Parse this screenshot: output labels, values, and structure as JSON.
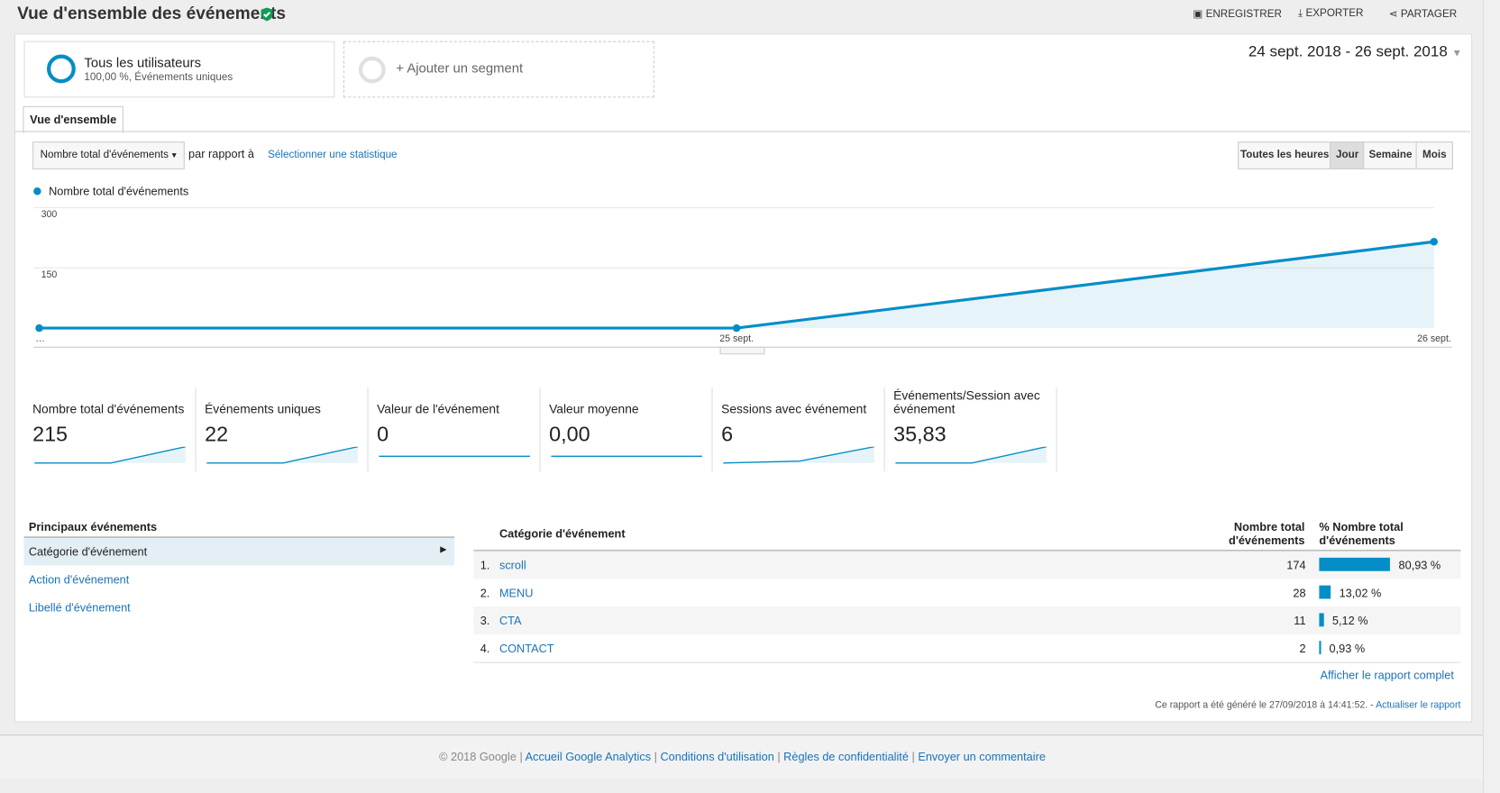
{
  "header": {
    "title": "Vue d'ensemble des événements",
    "actions": [
      "ENREGISTRER",
      "EXPORTER",
      "PARTAGER"
    ]
  },
  "segments": {
    "active": {
      "name": "Tous les utilisateurs",
      "detail": "100,00 %, Événements uniques"
    },
    "add": "+ Ajouter un segment"
  },
  "date_range": "24 sept. 2018 - 26 sept. 2018",
  "tab": "Vue d'ensemble",
  "controls": {
    "metric": "Nombre total d'événements",
    "compare": "par rapport à",
    "select": "Sélectionner une statistique",
    "periods": [
      "Toutes les heures",
      "Jour",
      "Semaine",
      "Mois"
    ],
    "active_period": "Jour"
  },
  "chart_data": {
    "type": "line",
    "categories": [
      "…",
      "25 sept.",
      "26 sept."
    ],
    "series": [
      {
        "name": "Nombre total d'événements",
        "color": "#058dc7",
        "values": [
          0,
          0,
          215
        ]
      }
    ],
    "ylim": [
      0,
      300
    ],
    "yticks": [
      150,
      300
    ],
    "grid": true
  },
  "metrics": [
    {
      "label": "Nombre total d'événements",
      "value": "215"
    },
    {
      "label": "Événements uniques",
      "value": "22"
    },
    {
      "label": "Valeur de l'événement",
      "value": "0"
    },
    {
      "label": "Valeur moyenne",
      "value": "0,00"
    },
    {
      "label": "Sessions avec événement",
      "value": "6"
    },
    {
      "label": "Événements/Session avec événement",
      "value": "35,83"
    }
  ],
  "top_events": {
    "title": "Principaux événements",
    "items": [
      "Catégorie d'événement",
      "Action d'événement",
      "Libellé d'événement"
    ]
  },
  "table": {
    "columns": [
      "Catégorie d'événement",
      "Nombre total d'événements",
      "% Nombre total d'événements"
    ],
    "rows": [
      {
        "rank": "1.",
        "name": "scroll",
        "total": 174,
        "pct": 80.93,
        "pct_label": "80,93 %"
      },
      {
        "rank": "2.",
        "name": "MENU",
        "total": 28,
        "pct": 13.02,
        "pct_label": "13,02 %"
      },
      {
        "rank": "3.",
        "name": "CTA",
        "total": 11,
        "pct": 5.12,
        "pct_label": "5,12 %"
      },
      {
        "rank": "4.",
        "name": "CONTACT",
        "total": 2,
        "pct": 0.93,
        "pct_label": "0,93 %"
      }
    ],
    "full_report": "Afficher le rapport complet"
  },
  "report_note": {
    "text": "Ce rapport a été généré le 27/09/2018 à 14:41:52. -",
    "link": "Actualiser le rapport"
  },
  "footer": {
    "copyright": "© 2018 Google",
    "links": [
      "Accueil Google Analytics",
      "Conditions d'utilisation",
      "Règles de confidentialité",
      "Envoyer un commentaire"
    ]
  }
}
